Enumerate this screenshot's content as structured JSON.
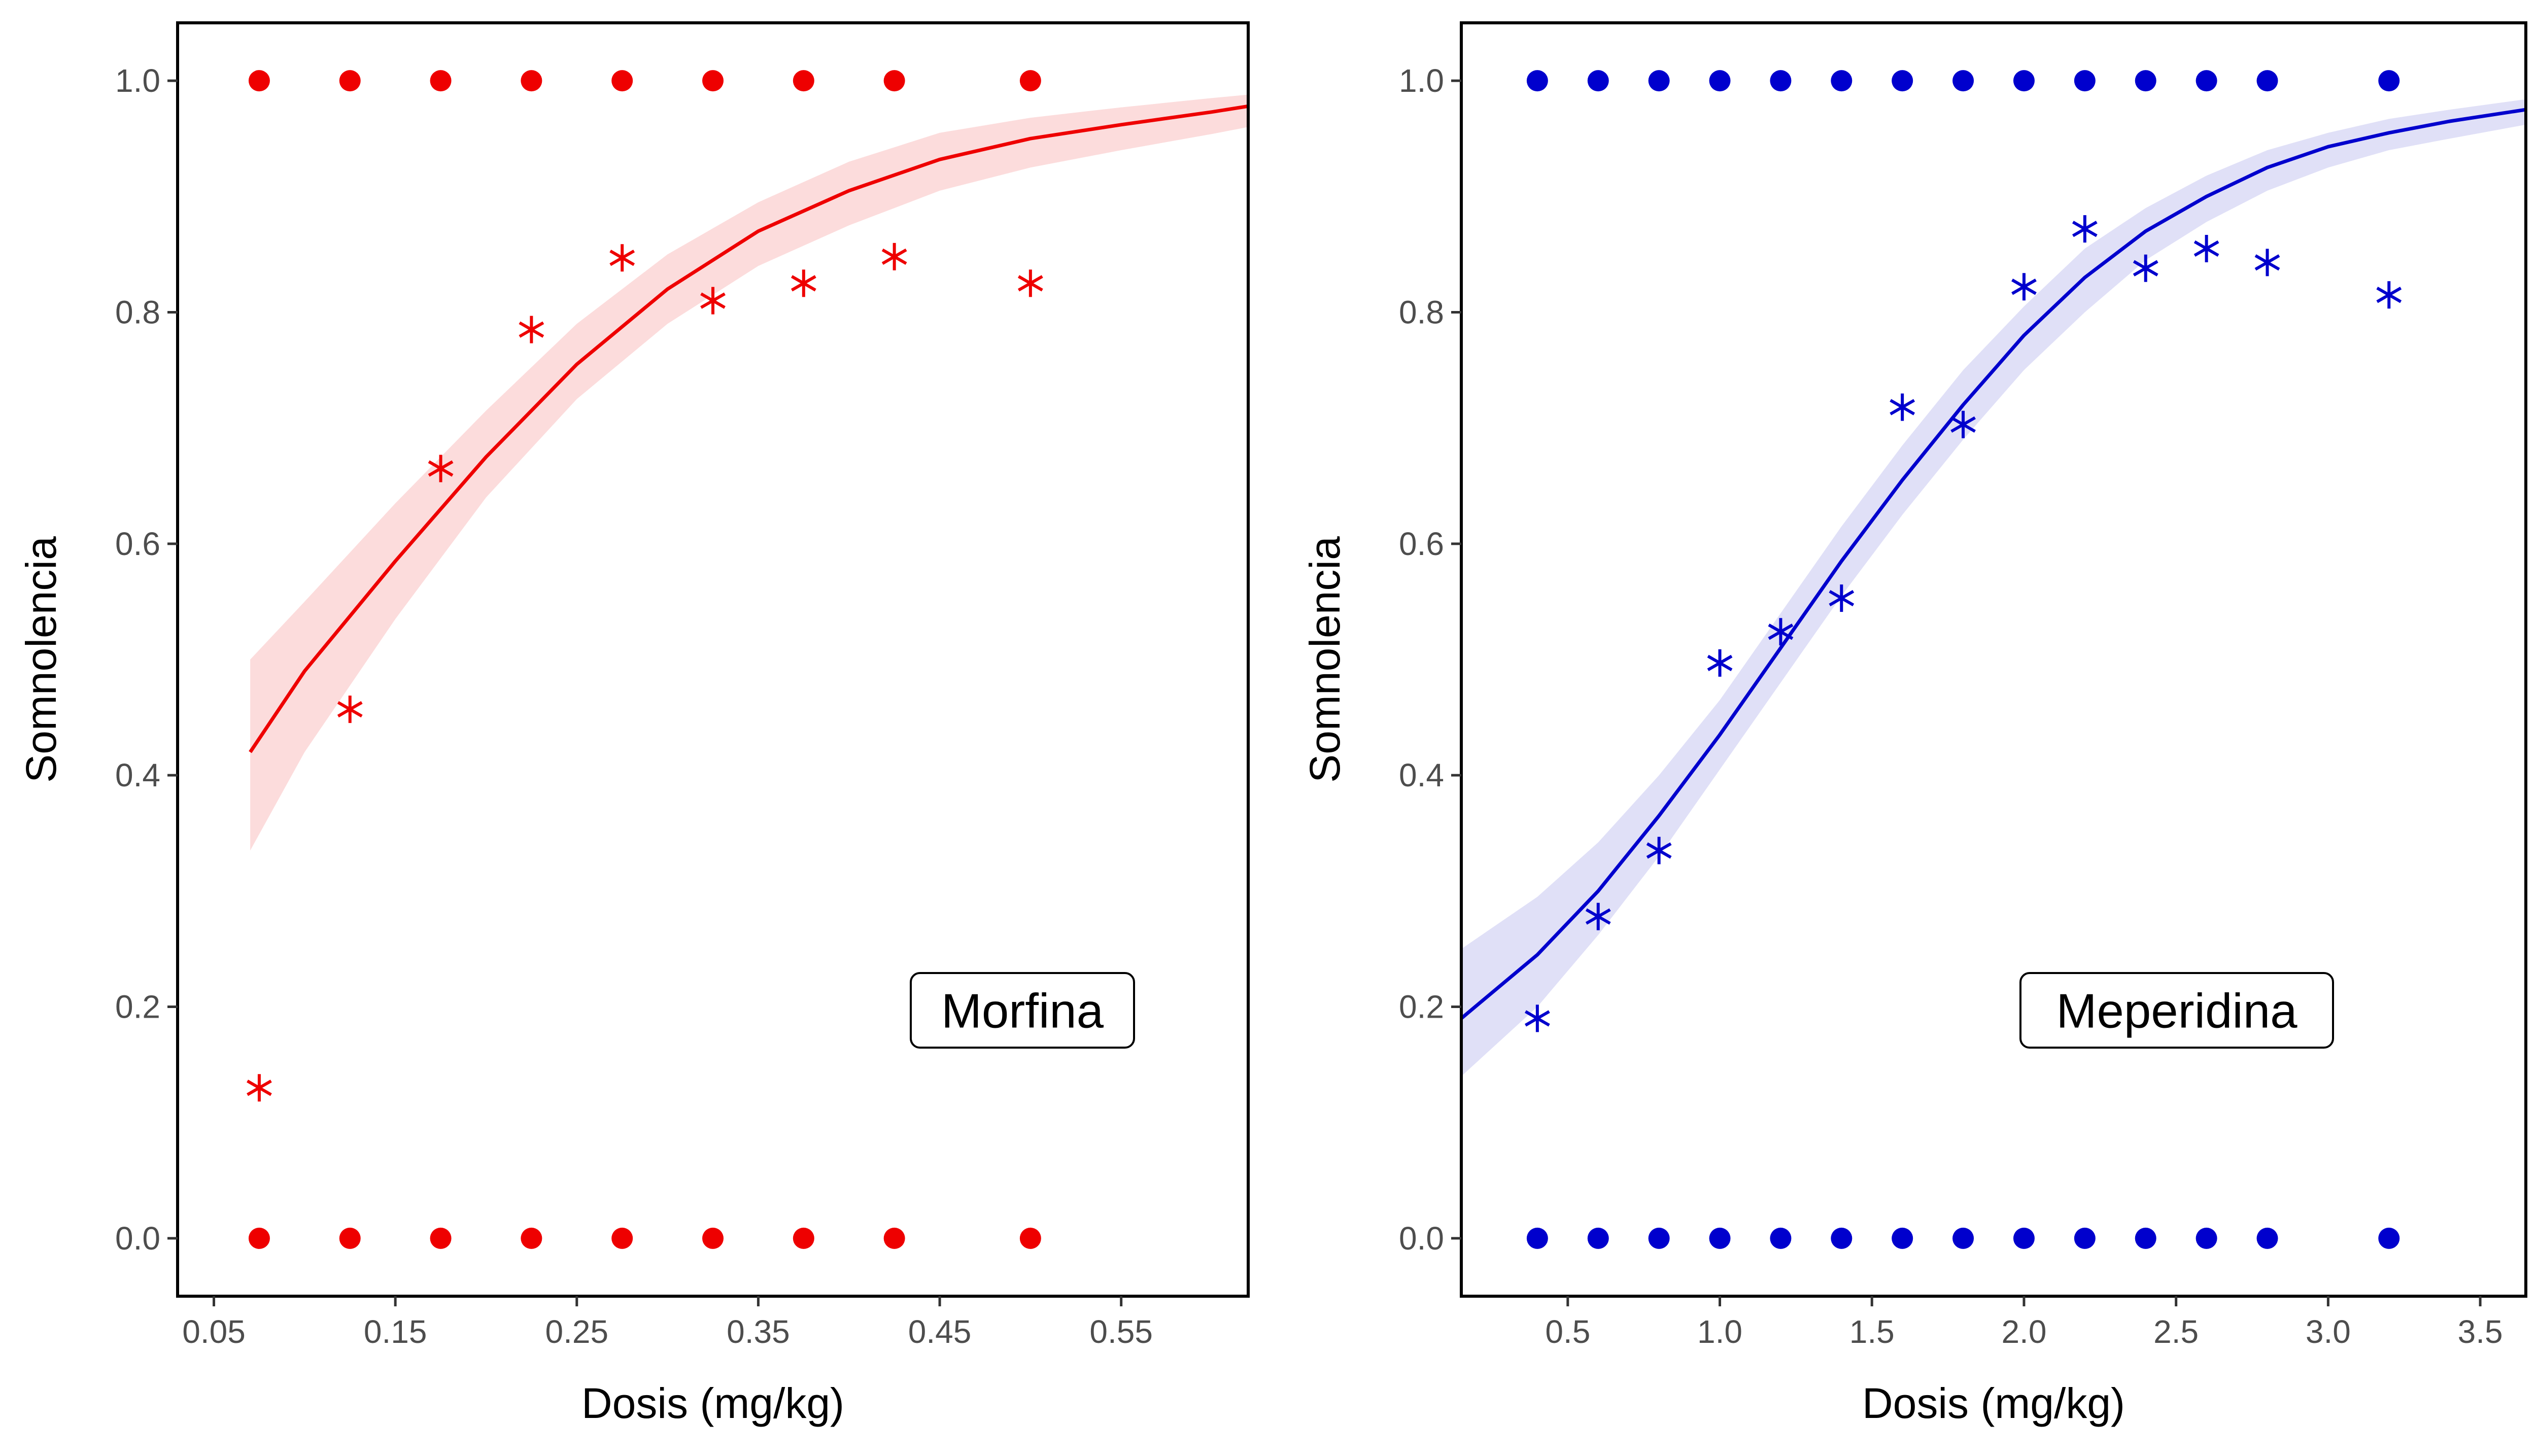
{
  "chart_data": [
    {
      "type": "scatter",
      "panel_label": "Morfina",
      "xlabel": "Dosis (mg/kg)",
      "ylabel": "Somnolencia",
      "xlim": [
        0.03,
        0.62
      ],
      "ylim": [
        -0.05,
        1.05
      ],
      "x_ticks": [
        0.05,
        0.15,
        0.25,
        0.35,
        0.45,
        0.55
      ],
      "x_tick_labels": [
        "0.05",
        "0.15",
        "0.25",
        "0.35",
        "0.45",
        "0.55"
      ],
      "y_ticks": [
        0.0,
        0.2,
        0.4,
        0.6,
        0.8,
        1.0
      ],
      "y_tick_labels": [
        "0.0",
        "0.2",
        "0.4",
        "0.6",
        "0.8",
        "1.0"
      ],
      "color": "#ee0000",
      "band_color": "#fcdcdc",
      "grid": false,
      "series": [
        {
          "marker": "circle",
          "x": [
            0.075,
            0.125,
            0.175,
            0.225,
            0.275,
            0.325,
            0.375,
            0.425,
            0.5,
            0.075,
            0.125,
            0.175,
            0.225,
            0.275,
            0.325,
            0.375,
            0.425,
            0.5
          ],
          "y": [
            1,
            1,
            1,
            1,
            1,
            1,
            1,
            1,
            1,
            0,
            0,
            0,
            0,
            0,
            0,
            0,
            0,
            0
          ]
        },
        {
          "marker": "asterisk",
          "x": [
            0.075,
            0.125,
            0.175,
            0.225,
            0.275,
            0.325,
            0.375,
            0.425,
            0.5
          ],
          "y": [
            0.13,
            0.457,
            0.665,
            0.785,
            0.847,
            0.81,
            0.825,
            0.848,
            0.825
          ]
        },
        {
          "marker": "line",
          "x": [
            0.07,
            0.1,
            0.15,
            0.2,
            0.25,
            0.3,
            0.35,
            0.4,
            0.45,
            0.5,
            0.55,
            0.6,
            0.62
          ],
          "y": [
            0.42,
            0.49,
            0.585,
            0.675,
            0.755,
            0.82,
            0.87,
            0.905,
            0.932,
            0.95,
            0.962,
            0.973,
            0.978
          ],
          "lower": [
            0.335,
            0.42,
            0.535,
            0.64,
            0.725,
            0.79,
            0.84,
            0.875,
            0.905,
            0.925,
            0.94,
            0.954,
            0.96
          ],
          "upper": [
            0.5,
            0.55,
            0.635,
            0.715,
            0.79,
            0.85,
            0.895,
            0.93,
            0.955,
            0.968,
            0.977,
            0.985,
            0.988
          ]
        }
      ]
    },
    {
      "type": "scatter",
      "panel_label": "Meperidina",
      "xlabel": "Dosis (mg/kg)",
      "ylabel": "Somnolencia",
      "xlim": [
        0.15,
        3.65
      ],
      "ylim": [
        -0.05,
        1.05
      ],
      "x_ticks": [
        0.5,
        1.0,
        1.5,
        2.0,
        2.5,
        3.0,
        3.5
      ],
      "x_tick_labels": [
        "0.5",
        "1.0",
        "1.5",
        "2.0",
        "2.5",
        "3.0",
        "3.5"
      ],
      "y_ticks": [
        0.0,
        0.2,
        0.4,
        0.6,
        0.8,
        1.0
      ],
      "y_tick_labels": [
        "0.0",
        "0.2",
        "0.4",
        "0.6",
        "0.8",
        "1.0"
      ],
      "color": "#0000cd",
      "band_color": "#e0e0f7",
      "grid": false,
      "series": [
        {
          "marker": "circle",
          "x": [
            0.4,
            0.6,
            0.8,
            1.0,
            1.2,
            1.4,
            1.6,
            1.8,
            2.0,
            2.2,
            2.4,
            2.6,
            2.8,
            3.2,
            0.4,
            0.6,
            0.8,
            1.0,
            1.2,
            1.4,
            1.6,
            1.8,
            2.0,
            2.2,
            2.4,
            2.6,
            2.8,
            3.2
          ],
          "y": [
            1,
            1,
            1,
            1,
            1,
            1,
            1,
            1,
            1,
            1,
            1,
            1,
            1,
            1,
            0,
            0,
            0,
            0,
            0,
            0,
            0,
            0,
            0,
            0,
            0,
            0,
            0,
            0
          ]
        },
        {
          "marker": "asterisk",
          "x": [
            0.4,
            0.6,
            0.8,
            1.0,
            1.2,
            1.4,
            1.6,
            1.8,
            2.0,
            2.2,
            2.4,
            2.6,
            2.8,
            3.2
          ],
          "y": [
            0.19,
            0.278,
            0.335,
            0.497,
            0.524,
            0.553,
            0.718,
            0.703,
            0.822,
            0.872,
            0.838,
            0.855,
            0.843,
            0.815
          ]
        },
        {
          "marker": "line",
          "x": [
            0.15,
            0.4,
            0.6,
            0.8,
            1.0,
            1.2,
            1.4,
            1.6,
            1.8,
            2.0,
            2.2,
            2.4,
            2.6,
            2.8,
            3.0,
            3.2,
            3.4,
            3.65
          ],
          "y": [
            0.19,
            0.245,
            0.3,
            0.365,
            0.435,
            0.51,
            0.585,
            0.655,
            0.72,
            0.78,
            0.83,
            0.87,
            0.9,
            0.925,
            0.943,
            0.955,
            0.965,
            0.975
          ],
          "lower": [
            0.14,
            0.2,
            0.262,
            0.33,
            0.405,
            0.48,
            0.555,
            0.625,
            0.69,
            0.75,
            0.8,
            0.845,
            0.878,
            0.905,
            0.925,
            0.94,
            0.95,
            0.962
          ],
          "upper": [
            0.25,
            0.295,
            0.342,
            0.4,
            0.465,
            0.54,
            0.615,
            0.685,
            0.75,
            0.805,
            0.855,
            0.89,
            0.918,
            0.94,
            0.955,
            0.967,
            0.975,
            0.984
          ]
        }
      ]
    }
  ]
}
